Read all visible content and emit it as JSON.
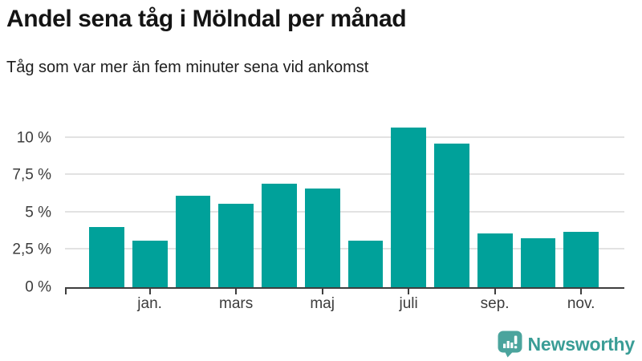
{
  "header": {
    "title": "Andel sena tåg i Mölndal per månad",
    "subtitle": "Tåg som var mer än fem minuter sena vid ankomst"
  },
  "chart_data": {
    "type": "bar",
    "title": "Andel sena tåg i Mölndal per månad",
    "subtitle": "Tåg som var mer än fem minuter sena vid ankomst",
    "unit": "%",
    "ylim": [
      0,
      11.7
    ],
    "grid": "horizontal",
    "legend": "none",
    "bar_color": "#00a19a",
    "yticks": [
      {
        "label": "0 %",
        "value": 0
      },
      {
        "label": "2,5 %",
        "value": 2.5
      },
      {
        "label": "5 %",
        "value": 5
      },
      {
        "label": "7,5 %",
        "value": 7.5
      },
      {
        "label": "10 %",
        "value": 10
      }
    ],
    "bars": [
      {
        "tick_label": "",
        "value": 4.0
      },
      {
        "tick_label": "jan.",
        "value": 3.1
      },
      {
        "tick_label": "",
        "value": 6.1
      },
      {
        "tick_label": "mars",
        "value": 5.6
      },
      {
        "tick_label": "",
        "value": 6.9
      },
      {
        "tick_label": "maj",
        "value": 6.6
      },
      {
        "tick_label": "",
        "value": 3.1
      },
      {
        "tick_label": "juli",
        "value": 10.7
      },
      {
        "tick_label": "",
        "value": 9.6
      },
      {
        "tick_label": "sep.",
        "value": 3.6
      },
      {
        "tick_label": "",
        "value": 3.3
      },
      {
        "tick_label": "nov.",
        "value": 3.7
      }
    ]
  },
  "branding": {
    "name": "Newsworthy",
    "icon": "newsworthy-speech-bubble-bar-chart-icon",
    "icon_color": "#4ba49d",
    "text_color": "#3a9d96"
  },
  "colors": {
    "bar": "#00a19a",
    "axis_text": "#3c3c3c",
    "gridline": "#e2e2e2",
    "axis_line": "#3e3e3e",
    "title_text": "#141414"
  }
}
